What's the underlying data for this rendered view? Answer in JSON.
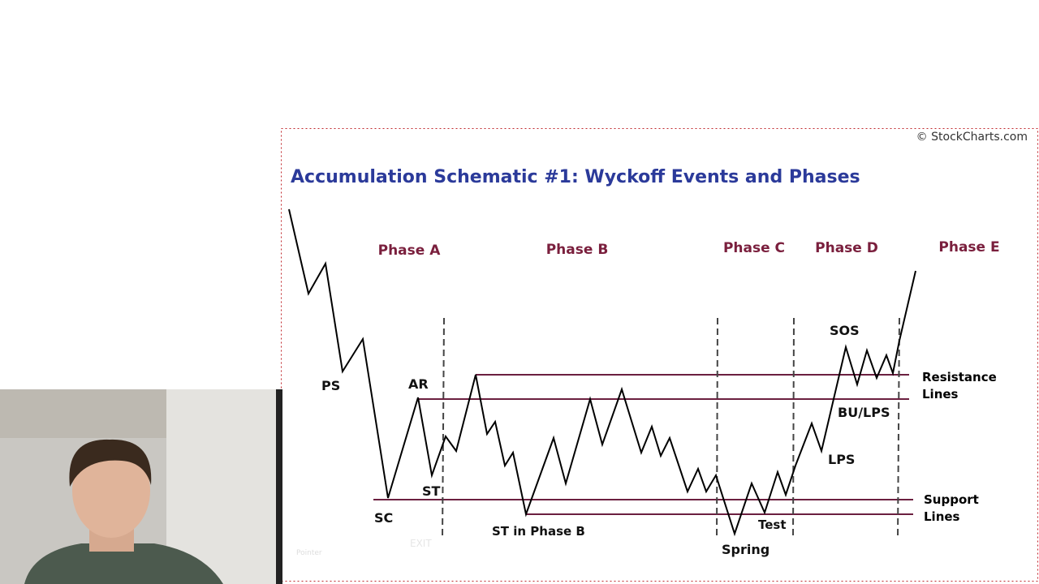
{
  "header": {
    "title": "Accumulation Schematic #1: Wyckoff Events and Phases",
    "watermark": "© StockCharts.com"
  },
  "phases": [
    "Phase A",
    "Phase B",
    "Phase C",
    "Phase D",
    "Phase E"
  ],
  "events": [
    "PS",
    "AR",
    "SC",
    "ST",
    "ST in Phase B",
    "Spring",
    "Test",
    "SOS",
    "BU/LPS",
    "LPS"
  ],
  "line_labels": {
    "resistance": "Resistance Lines",
    "support": "Support Lines"
  },
  "toolbar": {
    "pointer": "Pointer",
    "exit": "EXIT"
  }
}
